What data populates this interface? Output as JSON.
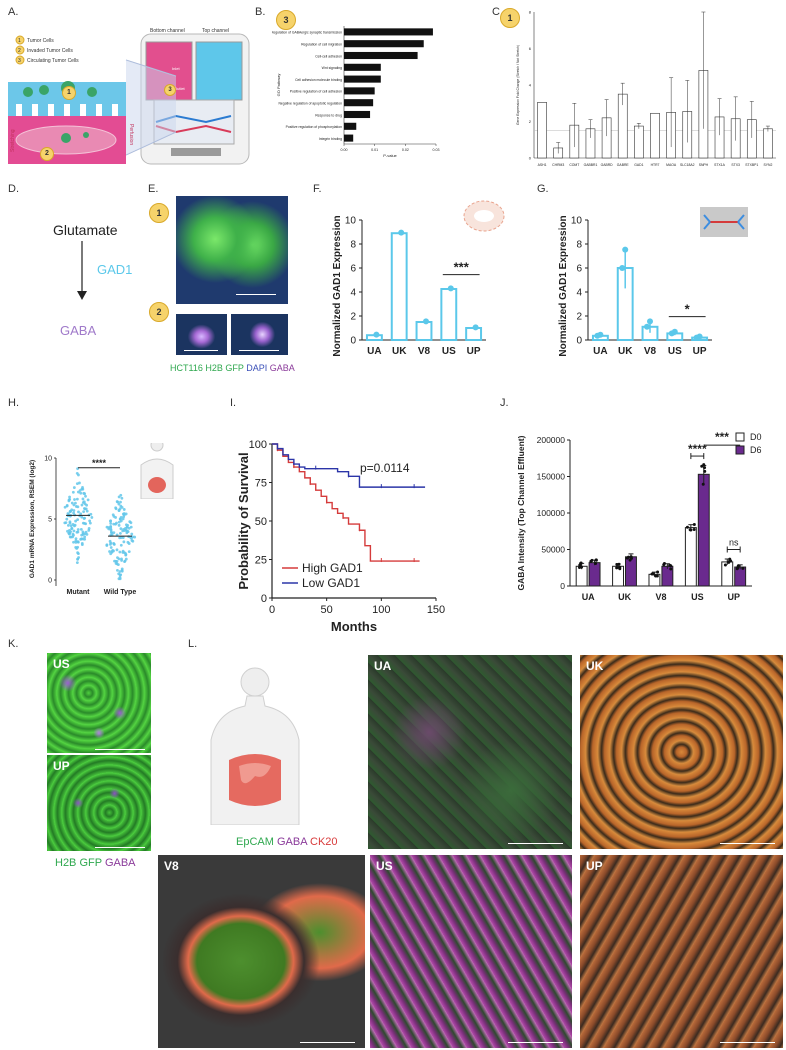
{
  "panels": {
    "A": "A.",
    "B": "B.",
    "C": "C.",
    "D": "D.",
    "E": "E.",
    "F": "F.",
    "G": "G.",
    "H": "H.",
    "I": "I.",
    "J": "J.",
    "K": "K.",
    "L": "L."
  },
  "badges": {
    "one": "1",
    "two": "2",
    "three": "3"
  },
  "panel_a": {
    "legend": [
      "Tumor Cells",
      "Invaded Tumor Cells",
      "Circulating Tumor Cells"
    ],
    "bottom_channel": "Bottom channel",
    "top_channel": "Top channel",
    "outlet": "Outlet",
    "inlet": "Inlet",
    "stretching": "Stretching",
    "perfusion": "Perfusion"
  },
  "panel_d": {
    "glutamate": "Glutamate",
    "enzyme": "GAD1",
    "product": "GABA"
  },
  "panel_e": {
    "legend": [
      "HCT116 H2B GFP",
      "DAPI",
      "GABA"
    ],
    "legend_colors": [
      "#2fa84f",
      "#3a4fb8",
      "#8a3a9a"
    ]
  },
  "panel_k": {
    "labels": [
      "US",
      "UP"
    ],
    "legend": [
      "H2B GFP",
      "GABA"
    ],
    "legend_colors": [
      "#2fa84f",
      "#8a3a9a"
    ]
  },
  "panel_l": {
    "legend": [
      "EpCAM",
      "GABA",
      "CK20"
    ],
    "legend_colors": [
      "#2fa84f",
      "#8a3a9a",
      "#d83b3b"
    ],
    "tiles": [
      "UA",
      "UK",
      "V8",
      "US",
      "UP"
    ]
  },
  "colors": {
    "light_blue": "#5bc8ea",
    "purple": "#6a2a8e",
    "red": "#d53b3b",
    "navy": "#2b35a8"
  },
  "chart_data": [
    {
      "id": "B",
      "type": "bar",
      "orientation": "horizontal",
      "ylabel": "GO Pathway",
      "xlabel": "P-value",
      "categories": [
        "Regulation of GABAergic synaptic transmission",
        "Regulation of cell migration",
        "Cell-cell adhesion",
        "Wnt signaling",
        "Cell adhesion molecule binding",
        "Positive regulation of cell adhesion",
        "Negative regulation of apoptotic regulation",
        "Response to drug",
        "Positive regulation of phosphorylation",
        "Integrin binding"
      ],
      "values": [
        0.029,
        0.026,
        0.024,
        0.012,
        0.012,
        0.01,
        0.0095,
        0.0085,
        0.004,
        0.003
      ],
      "xticks": [
        "0.00",
        "0.01",
        "0.02",
        "0.03"
      ],
      "xlim": [
        0,
        0.03
      ]
    },
    {
      "id": "C",
      "type": "bar",
      "ylabel": "Gene Expression Fold Change (Stretch / Not Stretch)",
      "categories": [
        "ASH1",
        "CHRM3",
        "COMT",
        "GABBR1",
        "GABRD",
        "GABRE",
        "GAD1",
        "HTR7",
        "MAOA",
        "SLC18A2",
        "SNPH",
        "STX1A",
        "STX3",
        "STXBP1",
        "SYN2"
      ],
      "values": [
        3.05,
        0.55,
        1.8,
        1.6,
        2.2,
        3.5,
        1.75,
        2.45,
        2.5,
        2.55,
        4.8,
        2.25,
        2.15,
        2.1,
        1.6
      ],
      "errors": [
        0,
        0.3,
        1.2,
        0.5,
        1.0,
        0.6,
        0.15,
        0,
        1.9,
        1.7,
        3.2,
        1.0,
        1.2,
        1.0,
        0.15
      ],
      "ylim": [
        0,
        8
      ],
      "yticks": [
        "0",
        "2",
        "4",
        "6",
        "8"
      ],
      "ref_line": 1.5
    },
    {
      "id": "F",
      "type": "bar",
      "ylabel": "Normalized GAD1 Expression",
      "categories": [
        "UA",
        "UK",
        "V8",
        "US",
        "UP"
      ],
      "values": [
        0.4,
        8.9,
        1.5,
        4.25,
        1.0
      ],
      "ylim": [
        0,
        10
      ],
      "yticks": [
        "0",
        "2",
        "4",
        "6",
        "8",
        "10"
      ],
      "significance": {
        "between": [
          "US",
          "UP"
        ],
        "label": "***"
      }
    },
    {
      "id": "G",
      "type": "bar",
      "ylabel": "Normalized GAD1 Expression",
      "categories": [
        "UA",
        "UK",
        "V8",
        "US",
        "UP"
      ],
      "values": [
        0.35,
        6.0,
        1.1,
        0.55,
        0.2
      ],
      "errors": [
        0.1,
        1.7,
        0.5,
        0.15,
        0.1
      ],
      "ylim": [
        0,
        10
      ],
      "yticks": [
        "0",
        "2",
        "4",
        "6",
        "8",
        "10"
      ],
      "significance": {
        "between": [
          "US",
          "UP"
        ],
        "label": "*"
      }
    },
    {
      "id": "H",
      "type": "scatter",
      "ylabel": "GAD1 mRNA Expression, RSEM (log2)",
      "categories": [
        "Mutant",
        "Wild Type"
      ],
      "means": [
        5.3,
        3.6
      ],
      "ylim": [
        0,
        10
      ],
      "yticks": [
        "0",
        "5",
        "10"
      ],
      "significance": {
        "between": [
          "Mutant",
          "Wild Type"
        ],
        "label": "****"
      }
    },
    {
      "id": "I",
      "type": "line",
      "title": "",
      "xlabel": "Months",
      "ylabel": "Probability of Survival",
      "xlim": [
        0,
        150
      ],
      "ylim": [
        0,
        100
      ],
      "xticks": [
        "0",
        "50",
        "100",
        "150"
      ],
      "yticks": [
        "0",
        "25",
        "50",
        "75",
        "100"
      ],
      "annotation": "p=0.0114",
      "series": [
        {
          "name": "High GAD1",
          "color": "#d53b3b",
          "x": [
            0,
            5,
            10,
            15,
            20,
            25,
            30,
            35,
            40,
            45,
            50,
            55,
            60,
            65,
            70,
            75,
            80,
            85,
            90,
            100,
            110,
            120,
            130,
            135
          ],
          "y": [
            100,
            96,
            92,
            88,
            85,
            82,
            78,
            74,
            70,
            66,
            62,
            58,
            55,
            52,
            48,
            48,
            44,
            34,
            24,
            24,
            24,
            24,
            24,
            24
          ]
        },
        {
          "name": "Low GAD1",
          "color": "#2b35a8",
          "x": [
            0,
            5,
            10,
            15,
            20,
            25,
            30,
            40,
            50,
            60,
            70,
            80,
            90,
            100,
            110,
            120,
            130,
            140
          ],
          "y": [
            100,
            97,
            93,
            90,
            87,
            85,
            84,
            84,
            84,
            82,
            79,
            72,
            72,
            72,
            72,
            72,
            72,
            72
          ]
        }
      ]
    },
    {
      "id": "J",
      "type": "bar",
      "ylabel": "GABA Intensity (Top Channel Effluent)",
      "categories": [
        "UA",
        "UK",
        "V8",
        "US",
        "UP"
      ],
      "series": [
        {
          "name": "D0",
          "color": "#ffffff",
          "values": [
            27000,
            27000,
            16000,
            80000,
            33000
          ],
          "errors": [
            4000,
            3500,
            3000,
            4000,
            4000
          ]
        },
        {
          "name": "D6",
          "color": "#6a2a8e",
          "values": [
            32000,
            40000,
            27000,
            153000,
            26000
          ],
          "errors": [
            3500,
            4000,
            3500,
            12000,
            3000
          ]
        }
      ],
      "ylim": [
        0,
        200000
      ],
      "yticks": [
        "0",
        "50000",
        "100000",
        "150000",
        "200000"
      ],
      "significance": [
        {
          "between": [
            "US D0",
            "US D6"
          ],
          "label": "****"
        },
        {
          "between": [
            "US D6",
            "UP D6"
          ],
          "label": "***"
        },
        {
          "between": [
            "UP D0",
            "UP D6"
          ],
          "label": "ns"
        }
      ]
    }
  ]
}
